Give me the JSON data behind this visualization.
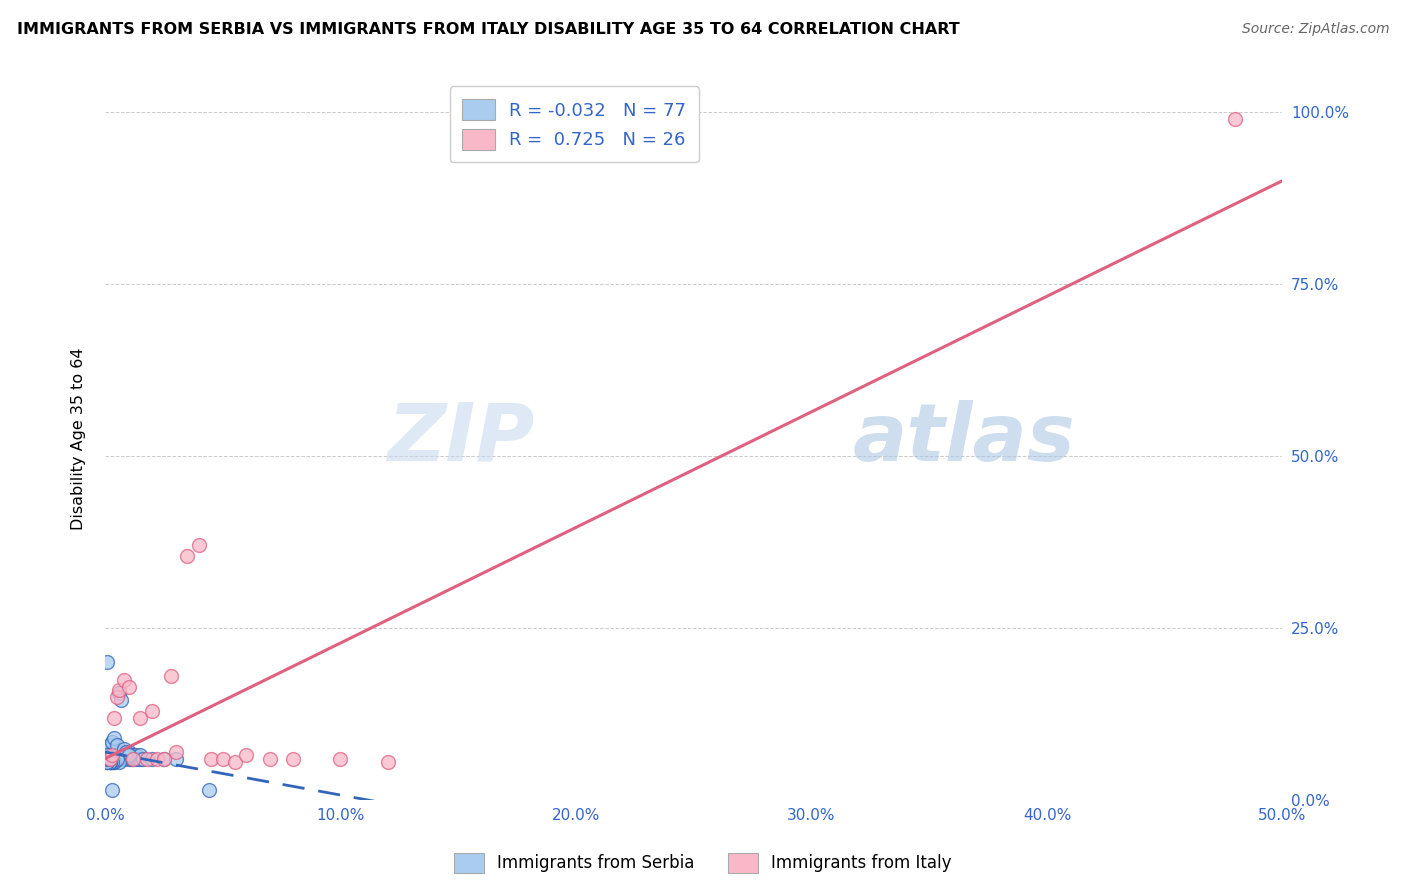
{
  "title": "IMMIGRANTS FROM SERBIA VS IMMIGRANTS FROM ITALY DISABILITY AGE 35 TO 64 CORRELATION CHART",
  "source": "Source: ZipAtlas.com",
  "ylabel": "Disability Age 35 to 64",
  "xlim": [
    0.0,
    0.5
  ],
  "ylim": [
    0.0,
    1.05
  ],
  "xtick_labels": [
    "0.0%",
    "10.0%",
    "20.0%",
    "30.0%",
    "40.0%",
    "50.0%"
  ],
  "xtick_vals": [
    0.0,
    0.1,
    0.2,
    0.3,
    0.4,
    0.5
  ],
  "ytick_labels": [
    "0.0%",
    "25.0%",
    "50.0%",
    "75.0%",
    "100.0%"
  ],
  "ytick_vals": [
    0.0,
    0.25,
    0.5,
    0.75,
    1.0
  ],
  "serbia_R": -0.032,
  "serbia_N": 77,
  "italy_R": 0.725,
  "italy_N": 26,
  "serbia_color": "#aaccee",
  "italy_color": "#f9b8c8",
  "serbia_line_color": "#3366bb",
  "italy_line_color": "#e06080",
  "watermark_zip": "ZIP",
  "watermark_atlas": "atlas",
  "serbia_x": [
    0.001,
    0.002,
    0.002,
    0.003,
    0.003,
    0.003,
    0.004,
    0.004,
    0.004,
    0.005,
    0.005,
    0.005,
    0.006,
    0.006,
    0.006,
    0.007,
    0.007,
    0.007,
    0.008,
    0.008,
    0.009,
    0.009,
    0.01,
    0.01,
    0.01,
    0.011,
    0.011,
    0.012,
    0.012,
    0.013,
    0.013,
    0.014,
    0.015,
    0.015,
    0.016,
    0.001,
    0.002,
    0.003,
    0.004,
    0.005,
    0.006,
    0.007,
    0.008,
    0.009,
    0.01,
    0.002,
    0.003,
    0.004,
    0.005,
    0.006,
    0.001,
    0.002,
    0.003,
    0.004,
    0.005,
    0.001,
    0.002,
    0.003,
    0.001,
    0.002,
    0.001,
    0.002,
    0.001,
    0.002,
    0.001,
    0.002,
    0.02,
    0.025,
    0.03,
    0.001,
    0.001,
    0.001,
    0.001,
    0.001,
    0.002,
    0.044,
    0.003
  ],
  "serbia_y": [
    0.065,
    0.06,
    0.07,
    0.055,
    0.06,
    0.065,
    0.06,
    0.065,
    0.07,
    0.06,
    0.065,
    0.07,
    0.06,
    0.065,
    0.07,
    0.06,
    0.065,
    0.07,
    0.06,
    0.065,
    0.065,
    0.07,
    0.06,
    0.065,
    0.07,
    0.06,
    0.065,
    0.06,
    0.065,
    0.06,
    0.065,
    0.06,
    0.06,
    0.065,
    0.06,
    0.075,
    0.08,
    0.085,
    0.09,
    0.08,
    0.155,
    0.145,
    0.075,
    0.07,
    0.065,
    0.055,
    0.06,
    0.055,
    0.06,
    0.055,
    0.06,
    0.055,
    0.06,
    0.055,
    0.06,
    0.055,
    0.06,
    0.055,
    0.2,
    0.055,
    0.06,
    0.055,
    0.06,
    0.055,
    0.065,
    0.06,
    0.06,
    0.06,
    0.06,
    0.06,
    0.06,
    0.055,
    0.055,
    0.06,
    0.06,
    0.015,
    0.015
  ],
  "italy_x": [
    0.002,
    0.003,
    0.004,
    0.005,
    0.006,
    0.008,
    0.01,
    0.012,
    0.015,
    0.018,
    0.02,
    0.022,
    0.025,
    0.028,
    0.03,
    0.035,
    0.04,
    0.045,
    0.05,
    0.055,
    0.06,
    0.07,
    0.08,
    0.1,
    0.12,
    0.48
  ],
  "italy_y": [
    0.06,
    0.065,
    0.12,
    0.15,
    0.16,
    0.175,
    0.165,
    0.06,
    0.12,
    0.06,
    0.13,
    0.06,
    0.06,
    0.18,
    0.07,
    0.355,
    0.37,
    0.06,
    0.06,
    0.055,
    0.065,
    0.06,
    0.06,
    0.06,
    0.055,
    0.99
  ],
  "legend_serbia": "Immigrants from Serbia",
  "legend_italy": "Immigrants from Italy"
}
